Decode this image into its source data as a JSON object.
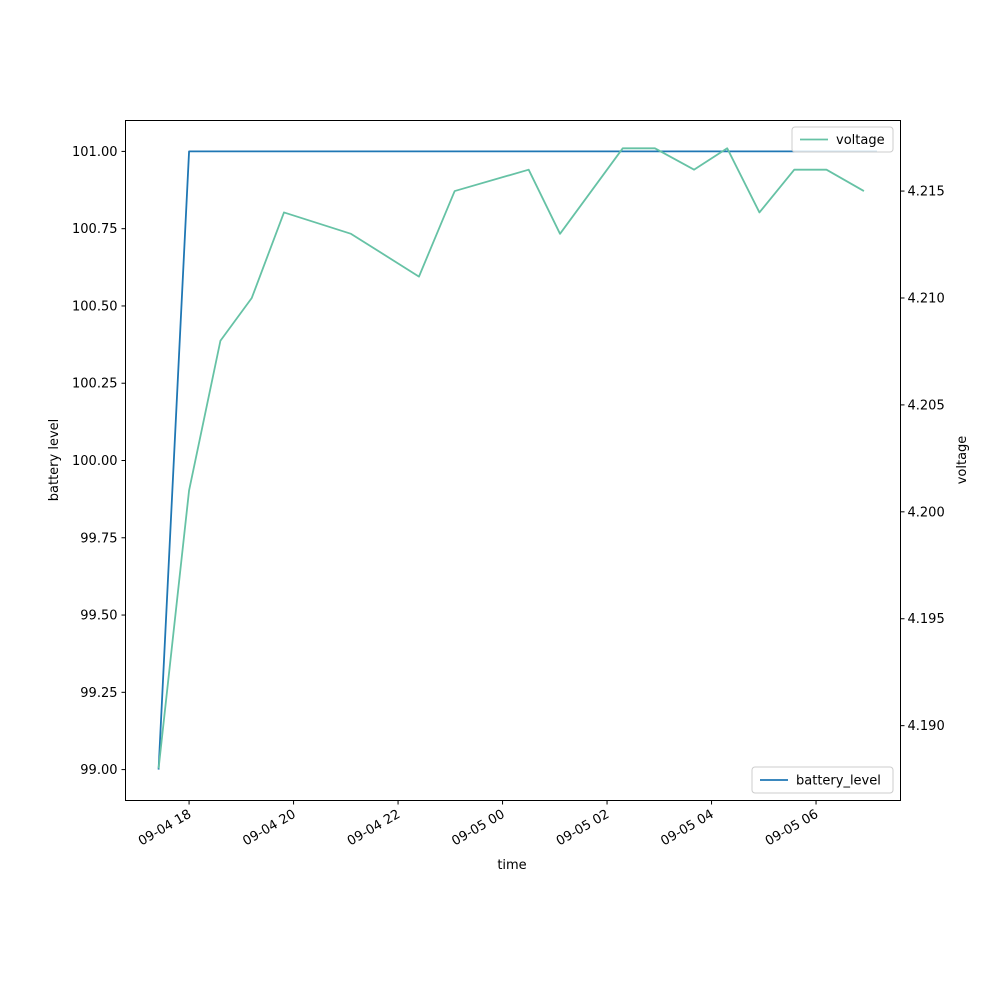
{
  "chart_data": {
    "type": "line",
    "xlabel": "time",
    "ylabel_left": "battery level",
    "ylabel_right": "voltage",
    "x_ticks": [
      "09-04 18",
      "09-04 20",
      "09-04 22",
      "09-05 00",
      "09-05 02",
      "09-05 04",
      "09-05 06"
    ],
    "y_left_ticks": [
      "99.00",
      "99.25",
      "99.50",
      "99.75",
      "100.00",
      "100.25",
      "100.50",
      "100.75",
      "101.00"
    ],
    "y_right_ticks": [
      "4.190",
      "4.195",
      "4.200",
      "4.205",
      "4.210",
      "4.215"
    ],
    "xlim": [
      "2024-09-04 16:47",
      "2024-09-05 07:37"
    ],
    "ylim_left": [
      98.9,
      101.1
    ],
    "ylim_right": [
      4.1865,
      4.2183
    ],
    "legend_placement": {
      "voltage": "upper-right",
      "battery_level": "lower-right"
    },
    "grid": false,
    "series": [
      {
        "name": "battery_level",
        "axis": "left",
        "color": "#1f77b4",
        "points": [
          [
            "2024-09-04 17:25",
            99.0
          ],
          [
            "2024-09-04 18:00",
            101.0
          ],
          [
            "2024-09-05 07:10",
            101.0
          ]
        ]
      },
      {
        "name": "voltage",
        "axis": "right",
        "color": "#66c2a5",
        "points": [
          [
            "2024-09-04 17:25",
            4.188
          ],
          [
            "2024-09-04 18:00",
            4.201
          ],
          [
            "2024-09-04 18:36",
            4.208
          ],
          [
            "2024-09-04 19:12",
            4.21
          ],
          [
            "2024-09-04 19:49",
            4.214
          ],
          [
            "2024-09-04 21:06",
            4.213
          ],
          [
            "2024-09-04 22:24",
            4.211
          ],
          [
            "2024-09-04 23:05",
            4.215
          ],
          [
            "2024-09-05 00:30",
            4.216
          ],
          [
            "2024-09-05 01:06",
            4.213
          ],
          [
            "2024-09-05 01:42",
            4.215
          ],
          [
            "2024-09-05 02:18",
            4.217
          ],
          [
            "2024-09-05 02:55",
            4.217
          ],
          [
            "2024-09-05 03:40",
            4.216
          ],
          [
            "2024-09-05 04:18",
            4.217
          ],
          [
            "2024-09-05 04:55",
            4.214
          ],
          [
            "2024-09-05 05:35",
            4.216
          ],
          [
            "2024-09-05 06:12",
            4.216
          ],
          [
            "2024-09-05 06:55",
            4.215
          ]
        ]
      }
    ]
  }
}
